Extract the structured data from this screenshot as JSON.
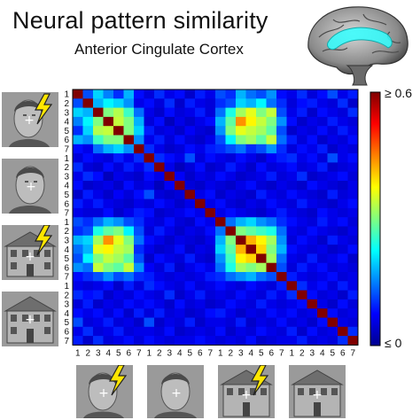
{
  "title": "Neural pattern similarity",
  "subtitle": "Anterior Cingulate Cortex",
  "icons": {
    "brain": "brain-medial-view-icon",
    "face": "face-photo-icon",
    "house": "house-photo-icon",
    "lightning": "lightning-bolt-icon"
  },
  "colors": {
    "colormap": [
      "#00008f",
      "#0000ff",
      "#0080ff",
      "#00ffff",
      "#80ff80",
      "#ffff00",
      "#ff8000",
      "#ff0000",
      "#800000"
    ],
    "highlight": "#33ffff"
  },
  "chart_data": {
    "type": "heatmap",
    "title": "Neural pattern similarity",
    "subtitle": "Anterior Cingulate Cortex",
    "tick_labels": [
      "1",
      "2",
      "3",
      "4",
      "5",
      "6",
      "7",
      "1",
      "2",
      "3",
      "4",
      "5",
      "6",
      "7",
      "1",
      "2",
      "3",
      "4",
      "5",
      "6",
      "7",
      "1",
      "2",
      "3",
      "4",
      "5",
      "6",
      "7"
    ],
    "row_groups": [
      "face-shocked",
      "face",
      "house-shocked",
      "house"
    ],
    "col_groups": [
      "face-shocked",
      "face",
      "house-shocked",
      "house"
    ],
    "colorbar": {
      "max_label": "≥ 0.6",
      "min_label": "≤ 0",
      "range": [
        0,
        0.6
      ]
    },
    "values": [
      [
        0.6,
        0.12,
        0.2,
        0.15,
        0.1,
        0.18,
        0.08,
        0.05,
        0.1,
        0.06,
        0.08,
        0.04,
        0.09,
        0.06,
        0.12,
        0.1,
        0.18,
        0.14,
        0.12,
        0.16,
        0.08,
        0.06,
        0.1,
        0.05,
        0.08,
        0.12,
        0.06,
        0.09
      ],
      [
        0.12,
        0.6,
        0.18,
        0.22,
        0.2,
        0.16,
        0.06,
        0.08,
        0.05,
        0.1,
        0.04,
        0.09,
        0.06,
        0.05,
        0.1,
        0.12,
        0.2,
        0.18,
        0.22,
        0.14,
        0.1,
        0.05,
        0.08,
        0.09,
        0.06,
        0.05,
        0.1,
        0.04
      ],
      [
        0.2,
        0.18,
        0.6,
        0.3,
        0.33,
        0.26,
        0.14,
        0.06,
        0.04,
        0.08,
        0.05,
        0.06,
        0.09,
        0.05,
        0.14,
        0.24,
        0.32,
        0.36,
        0.3,
        0.34,
        0.12,
        0.06,
        0.09,
        0.04,
        0.08,
        0.06,
        0.05,
        0.1
      ],
      [
        0.15,
        0.22,
        0.3,
        0.6,
        0.34,
        0.3,
        0.18,
        0.05,
        0.08,
        0.03,
        0.06,
        0.04,
        0.06,
        0.08,
        0.18,
        0.28,
        0.44,
        0.38,
        0.34,
        0.3,
        0.16,
        0.08,
        0.04,
        0.06,
        0.05,
        0.09,
        0.06,
        0.05
      ],
      [
        0.1,
        0.2,
        0.33,
        0.34,
        0.6,
        0.3,
        0.2,
        0.09,
        0.05,
        0.06,
        0.04,
        0.07,
        0.05,
        0.04,
        0.16,
        0.3,
        0.36,
        0.34,
        0.32,
        0.28,
        0.12,
        0.04,
        0.06,
        0.05,
        0.08,
        0.05,
        0.09,
        0.06
      ],
      [
        0.18,
        0.16,
        0.26,
        0.3,
        0.3,
        0.6,
        0.16,
        0.06,
        0.09,
        0.05,
        0.08,
        0.05,
        0.04,
        0.06,
        0.12,
        0.22,
        0.3,
        0.32,
        0.28,
        0.34,
        0.14,
        0.09,
        0.05,
        0.08,
        0.04,
        0.06,
        0.05,
        0.08
      ],
      [
        0.08,
        0.06,
        0.14,
        0.18,
        0.2,
        0.16,
        0.6,
        0.1,
        0.06,
        0.04,
        0.05,
        0.08,
        0.06,
        0.09,
        0.1,
        0.12,
        0.14,
        0.1,
        0.12,
        0.16,
        0.1,
        0.05,
        0.08,
        0.06,
        0.09,
        0.04,
        0.06,
        0.05
      ],
      [
        0.05,
        0.08,
        0.06,
        0.05,
        0.09,
        0.06,
        0.1,
        0.6,
        0.1,
        0.08,
        0.06,
        0.12,
        0.05,
        0.08,
        0.06,
        0.05,
        0.08,
        0.06,
        0.04,
        0.07,
        0.09,
        0.1,
        0.06,
        0.08,
        0.05,
        0.12,
        0.06,
        0.08
      ],
      [
        0.1,
        0.05,
        0.04,
        0.08,
        0.05,
        0.09,
        0.06,
        0.1,
        0.6,
        0.06,
        0.03,
        0.05,
        0.08,
        0.04,
        0.05,
        0.09,
        0.06,
        0.04,
        0.08,
        0.05,
        0.06,
        0.08,
        0.05,
        0.06,
        0.09,
        0.04,
        0.05,
        0.06
      ],
      [
        0.06,
        0.1,
        0.08,
        0.03,
        0.06,
        0.05,
        0.04,
        0.08,
        0.06,
        0.6,
        0.07,
        0.04,
        0.06,
        0.05,
        0.08,
        0.06,
        0.04,
        0.05,
        0.06,
        0.09,
        0.05,
        0.06,
        0.1,
        0.04,
        0.05,
        0.06,
        0.08,
        0.05
      ],
      [
        0.08,
        0.04,
        0.05,
        0.06,
        0.04,
        0.08,
        0.05,
        0.06,
        0.03,
        0.07,
        0.6,
        0.05,
        0.04,
        0.06,
        0.05,
        0.04,
        0.06,
        0.08,
        0.05,
        0.04,
        0.06,
        0.05,
        0.04,
        0.08,
        0.06,
        0.05,
        0.04,
        0.06
      ],
      [
        0.04,
        0.09,
        0.06,
        0.04,
        0.07,
        0.05,
        0.08,
        0.12,
        0.05,
        0.04,
        0.05,
        0.6,
        0.06,
        0.08,
        0.04,
        0.06,
        0.05,
        0.04,
        0.09,
        0.06,
        0.05,
        0.08,
        0.06,
        0.05,
        0.04,
        0.09,
        0.05,
        0.06
      ],
      [
        0.09,
        0.06,
        0.09,
        0.06,
        0.05,
        0.04,
        0.06,
        0.05,
        0.08,
        0.06,
        0.04,
        0.06,
        0.6,
        0.06,
        0.08,
        0.05,
        0.04,
        0.06,
        0.05,
        0.08,
        0.06,
        0.05,
        0.09,
        0.06,
        0.05,
        0.04,
        0.06,
        0.08
      ],
      [
        0.06,
        0.05,
        0.05,
        0.08,
        0.04,
        0.06,
        0.09,
        0.08,
        0.04,
        0.05,
        0.06,
        0.08,
        0.06,
        0.6,
        0.06,
        0.08,
        0.06,
        0.05,
        0.04,
        0.06,
        0.09,
        0.06,
        0.05,
        0.04,
        0.08,
        0.06,
        0.05,
        0.06
      ],
      [
        0.12,
        0.1,
        0.14,
        0.18,
        0.16,
        0.12,
        0.1,
        0.06,
        0.05,
        0.08,
        0.05,
        0.04,
        0.08,
        0.06,
        0.6,
        0.14,
        0.18,
        0.2,
        0.16,
        0.14,
        0.1,
        0.08,
        0.06,
        0.05,
        0.09,
        0.06,
        0.08,
        0.05
      ],
      [
        0.1,
        0.12,
        0.24,
        0.28,
        0.3,
        0.22,
        0.12,
        0.05,
        0.09,
        0.06,
        0.04,
        0.06,
        0.05,
        0.08,
        0.14,
        0.6,
        0.3,
        0.28,
        0.26,
        0.24,
        0.14,
        0.06,
        0.05,
        0.08,
        0.06,
        0.05,
        0.04,
        0.06
      ],
      [
        0.18,
        0.2,
        0.32,
        0.44,
        0.36,
        0.3,
        0.14,
        0.08,
        0.06,
        0.04,
        0.06,
        0.05,
        0.04,
        0.06,
        0.18,
        0.3,
        0.6,
        0.42,
        0.38,
        0.32,
        0.16,
        0.05,
        0.08,
        0.06,
        0.04,
        0.09,
        0.06,
        0.05
      ],
      [
        0.14,
        0.18,
        0.36,
        0.38,
        0.34,
        0.32,
        0.1,
        0.06,
        0.04,
        0.05,
        0.08,
        0.04,
        0.06,
        0.05,
        0.2,
        0.28,
        0.42,
        0.6,
        0.4,
        0.3,
        0.18,
        0.08,
        0.06,
        0.05,
        0.06,
        0.04,
        0.05,
        0.08
      ],
      [
        0.12,
        0.22,
        0.3,
        0.34,
        0.32,
        0.28,
        0.12,
        0.04,
        0.08,
        0.06,
        0.05,
        0.09,
        0.05,
        0.04,
        0.16,
        0.26,
        0.38,
        0.4,
        0.6,
        0.32,
        0.14,
        0.06,
        0.05,
        0.09,
        0.05,
        0.06,
        0.08,
        0.04
      ],
      [
        0.16,
        0.14,
        0.34,
        0.3,
        0.28,
        0.34,
        0.16,
        0.07,
        0.05,
        0.09,
        0.04,
        0.06,
        0.08,
        0.06,
        0.14,
        0.24,
        0.32,
        0.3,
        0.32,
        0.6,
        0.12,
        0.05,
        0.09,
        0.06,
        0.08,
        0.05,
        0.06,
        0.05
      ],
      [
        0.08,
        0.1,
        0.12,
        0.16,
        0.12,
        0.14,
        0.1,
        0.09,
        0.06,
        0.05,
        0.06,
        0.05,
        0.06,
        0.09,
        0.1,
        0.14,
        0.16,
        0.18,
        0.14,
        0.12,
        0.6,
        0.09,
        0.06,
        0.05,
        0.06,
        0.08,
        0.05,
        0.06
      ],
      [
        0.06,
        0.05,
        0.06,
        0.08,
        0.04,
        0.09,
        0.05,
        0.1,
        0.08,
        0.06,
        0.05,
        0.08,
        0.05,
        0.06,
        0.08,
        0.06,
        0.05,
        0.08,
        0.06,
        0.05,
        0.09,
        0.6,
        0.1,
        0.06,
        0.08,
        0.05,
        0.09,
        0.06
      ],
      [
        0.1,
        0.08,
        0.09,
        0.04,
        0.06,
        0.05,
        0.08,
        0.06,
        0.05,
        0.1,
        0.04,
        0.06,
        0.09,
        0.05,
        0.06,
        0.05,
        0.08,
        0.06,
        0.05,
        0.09,
        0.06,
        0.1,
        0.6,
        0.08,
        0.05,
        0.06,
        0.04,
        0.09
      ],
      [
        0.05,
        0.09,
        0.04,
        0.06,
        0.05,
        0.08,
        0.06,
        0.08,
        0.06,
        0.04,
        0.08,
        0.05,
        0.06,
        0.04,
        0.05,
        0.08,
        0.06,
        0.05,
        0.09,
        0.06,
        0.05,
        0.06,
        0.08,
        0.6,
        0.06,
        0.04,
        0.08,
        0.05
      ],
      [
        0.08,
        0.06,
        0.08,
        0.05,
        0.08,
        0.04,
        0.09,
        0.05,
        0.09,
        0.05,
        0.06,
        0.04,
        0.05,
        0.08,
        0.09,
        0.06,
        0.04,
        0.06,
        0.05,
        0.08,
        0.06,
        0.08,
        0.05,
        0.06,
        0.6,
        0.08,
        0.05,
        0.06
      ],
      [
        0.12,
        0.05,
        0.06,
        0.09,
        0.05,
        0.06,
        0.04,
        0.12,
        0.04,
        0.06,
        0.05,
        0.09,
        0.04,
        0.06,
        0.06,
        0.05,
        0.09,
        0.04,
        0.06,
        0.05,
        0.08,
        0.05,
        0.06,
        0.04,
        0.08,
        0.6,
        0.06,
        0.05
      ],
      [
        0.06,
        0.1,
        0.05,
        0.06,
        0.09,
        0.05,
        0.06,
        0.06,
        0.05,
        0.08,
        0.04,
        0.05,
        0.06,
        0.05,
        0.08,
        0.04,
        0.06,
        0.05,
        0.08,
        0.06,
        0.05,
        0.09,
        0.04,
        0.08,
        0.05,
        0.06,
        0.6,
        0.1
      ],
      [
        0.09,
        0.04,
        0.1,
        0.05,
        0.06,
        0.08,
        0.05,
        0.08,
        0.06,
        0.05,
        0.06,
        0.06,
        0.08,
        0.06,
        0.05,
        0.06,
        0.05,
        0.08,
        0.04,
        0.05,
        0.06,
        0.06,
        0.09,
        0.05,
        0.06,
        0.05,
        0.1,
        0.6
      ]
    ]
  }
}
